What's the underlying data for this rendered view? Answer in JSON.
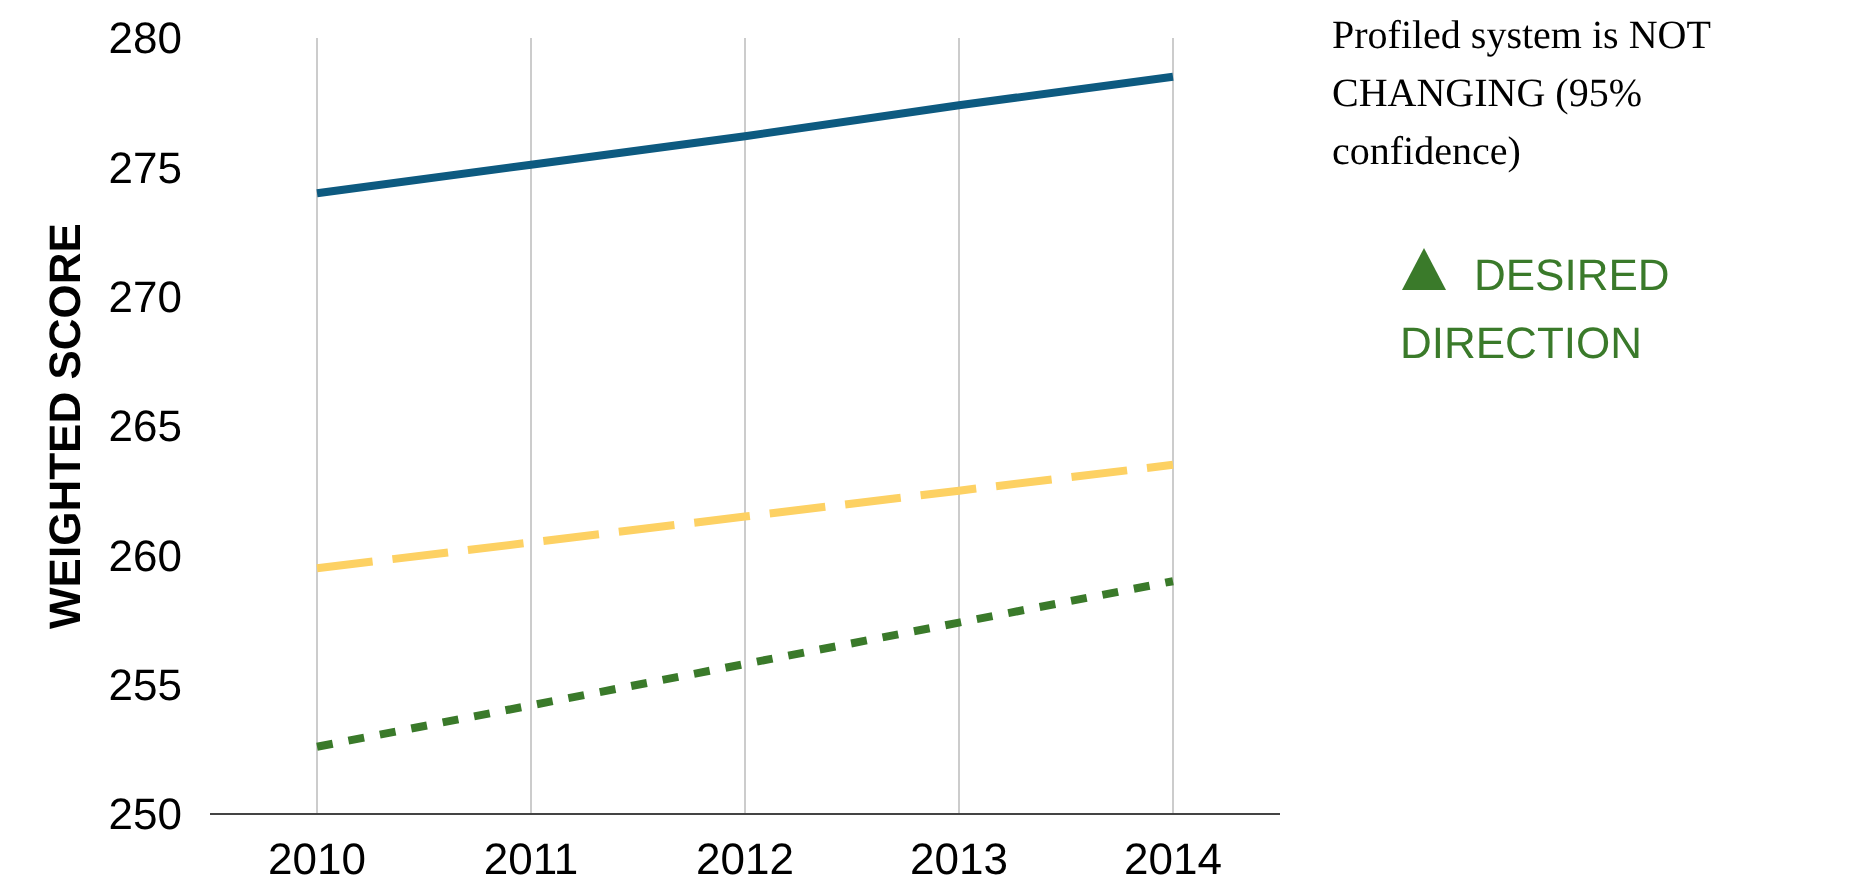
{
  "chart_data": {
    "type": "line",
    "ylabel": "WEIGHTED SCORE",
    "categories": [
      "2010",
      "2011",
      "2012",
      "2013",
      "2014"
    ],
    "series": [
      {
        "color": "#0d5a80",
        "line_style": "solid",
        "values": [
          274,
          275.1,
          276.2,
          277.4,
          278.5
        ]
      },
      {
        "color": "#fdd163",
        "line_style": "dashed",
        "values": [
          259.5,
          260.5,
          261.5,
          262.5,
          263.5
        ]
      },
      {
        "color": "#3a7a2a",
        "line_style": "dotted",
        "values": [
          252.6,
          254.2,
          255.8,
          257.4,
          259
        ]
      }
    ],
    "ylim": [
      250,
      280
    ],
    "yticks": [
      250,
      255,
      260,
      265,
      270,
      275,
      280
    ],
    "grid": "x",
    "marker": "none",
    "annotations": [
      "Profiled system is NOT CHANGING (95% confidence)",
      "DESIRED DIRECTION"
    ]
  }
}
